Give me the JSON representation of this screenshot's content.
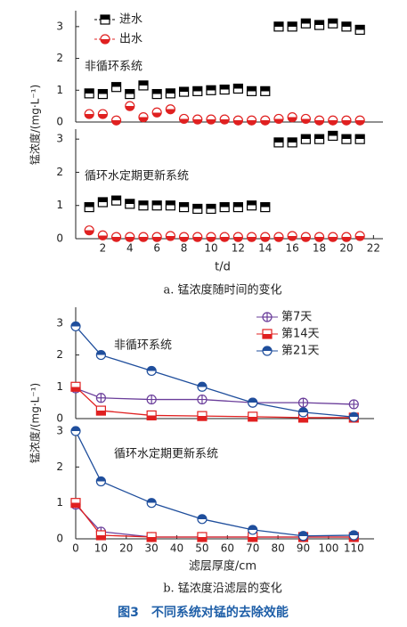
{
  "figure_title": "图3　不同系统对锰的去除效能",
  "chart_data": [
    {
      "type": "scatter",
      "annotation": "非循环系统",
      "xlim": [
        0,
        22.7
      ],
      "ylim": [
        0,
        3.5
      ],
      "yticks": [
        0,
        1,
        2,
        3
      ],
      "x": [
        1,
        2,
        3,
        4,
        5,
        6,
        7,
        8,
        9,
        10,
        11,
        12,
        13,
        14,
        15,
        16,
        17,
        18,
        19,
        20,
        21
      ],
      "series": [
        {
          "name": "进水",
          "color": "#000000",
          "marker": "square-top",
          "values": [
            0.9,
            0.88,
            1.1,
            0.88,
            1.15,
            0.88,
            0.9,
            0.95,
            0.97,
            1.0,
            1.02,
            1.05,
            0.97,
            0.97,
            3.0,
            3.0,
            3.1,
            3.05,
            3.1,
            3.0,
            2.9
          ]
        },
        {
          "name": "出水",
          "color": "#e02020",
          "marker": "circle-bottom",
          "values": [
            0.25,
            0.25,
            0.05,
            0.5,
            0.15,
            0.3,
            0.4,
            0.1,
            0.08,
            0.08,
            0.08,
            0.05,
            0.05,
            0.05,
            0.1,
            0.15,
            0.1,
            0.05,
            0.05,
            0.05,
            0.05
          ]
        }
      ]
    },
    {
      "type": "scatter",
      "annotation": "循环水定期更新系统",
      "xlim": [
        0,
        22.7
      ],
      "ylim": [
        0,
        3.3
      ],
      "yticks": [
        0,
        1,
        2,
        3
      ],
      "xticks": [
        2,
        4,
        6,
        8,
        10,
        12,
        14,
        16,
        18,
        20,
        22
      ],
      "xlabel": "t/d",
      "ylabel": "锰浓度/(mg·L⁻¹)",
      "caption": "a. 锰浓度随时间的变化",
      "x": [
        1,
        2,
        3,
        4,
        5,
        6,
        7,
        8,
        9,
        10,
        11,
        12,
        13,
        14,
        15,
        16,
        17,
        18,
        19,
        20,
        21
      ],
      "series": [
        {
          "color": "#000000",
          "marker": "square-top",
          "values": [
            0.95,
            1.1,
            1.15,
            1.05,
            1.0,
            1.0,
            1.0,
            0.95,
            0.9,
            0.9,
            0.95,
            0.95,
            1.0,
            0.95,
            2.9,
            2.9,
            3.0,
            3.0,
            3.1,
            3.0,
            3.0
          ]
        },
        {
          "color": "#e02020",
          "marker": "circle-bottom",
          "values": [
            0.25,
            0.1,
            0.05,
            0.05,
            0.05,
            0.05,
            0.08,
            0.05,
            0.05,
            0.05,
            0.05,
            0.05,
            0.05,
            0.05,
            0.05,
            0.08,
            0.05,
            0.05,
            0.05,
            0.05,
            0.08
          ]
        }
      ]
    },
    {
      "type": "line",
      "annotation": "非循环系统",
      "xlim": [
        0,
        118
      ],
      "ylim": [
        0,
        3.5
      ],
      "yticks": [
        0,
        1,
        2,
        3
      ],
      "x": [
        0,
        10,
        30,
        50,
        70,
        90,
        110
      ],
      "series": [
        {
          "name": "第7天",
          "color": "#6a3d9a",
          "marker": "circle-plus",
          "values": [
            0.95,
            0.65,
            0.6,
            0.6,
            0.5,
            0.5,
            0.45
          ]
        },
        {
          "name": "第14天",
          "color": "#e02020",
          "marker": "square-bottom",
          "values": [
            1.0,
            0.25,
            0.1,
            0.08,
            0.06,
            0.03,
            0.03
          ]
        },
        {
          "name": "第21天",
          "color": "#1f4e9c",
          "marker": "circle-top",
          "values": [
            2.9,
            2.0,
            1.5,
            1.0,
            0.5,
            0.2,
            0.05
          ]
        }
      ]
    },
    {
      "type": "line",
      "annotation": "循环水定期更新系统",
      "xlim": [
        0,
        118
      ],
      "ylim": [
        0,
        3.1
      ],
      "yticks": [
        0,
        1,
        2,
        3
      ],
      "xticks": [
        0,
        10,
        20,
        30,
        40,
        50,
        60,
        70,
        80,
        90,
        100,
        110
      ],
      "xlabel": "滤层厚度/cm",
      "ylabel": "锰浓度/(mg·L⁻¹)",
      "caption": "b. 锰浓度沿滤层的变化",
      "x": [
        0,
        10,
        30,
        50,
        70,
        90,
        110
      ],
      "series": [
        {
          "color": "#6a3d9a",
          "marker": "circle-plus",
          "values": [
            0.95,
            0.2,
            0.05,
            0.05,
            0.05,
            0.05,
            0.05
          ]
        },
        {
          "color": "#e02020",
          "marker": "square-bottom",
          "values": [
            1.0,
            0.1,
            0.05,
            0.05,
            0.05,
            0.05,
            0.05
          ]
        },
        {
          "color": "#1f4e9c",
          "marker": "circle-top",
          "values": [
            3.0,
            1.6,
            1.0,
            0.55,
            0.25,
            0.08,
            0.1
          ]
        }
      ]
    }
  ]
}
